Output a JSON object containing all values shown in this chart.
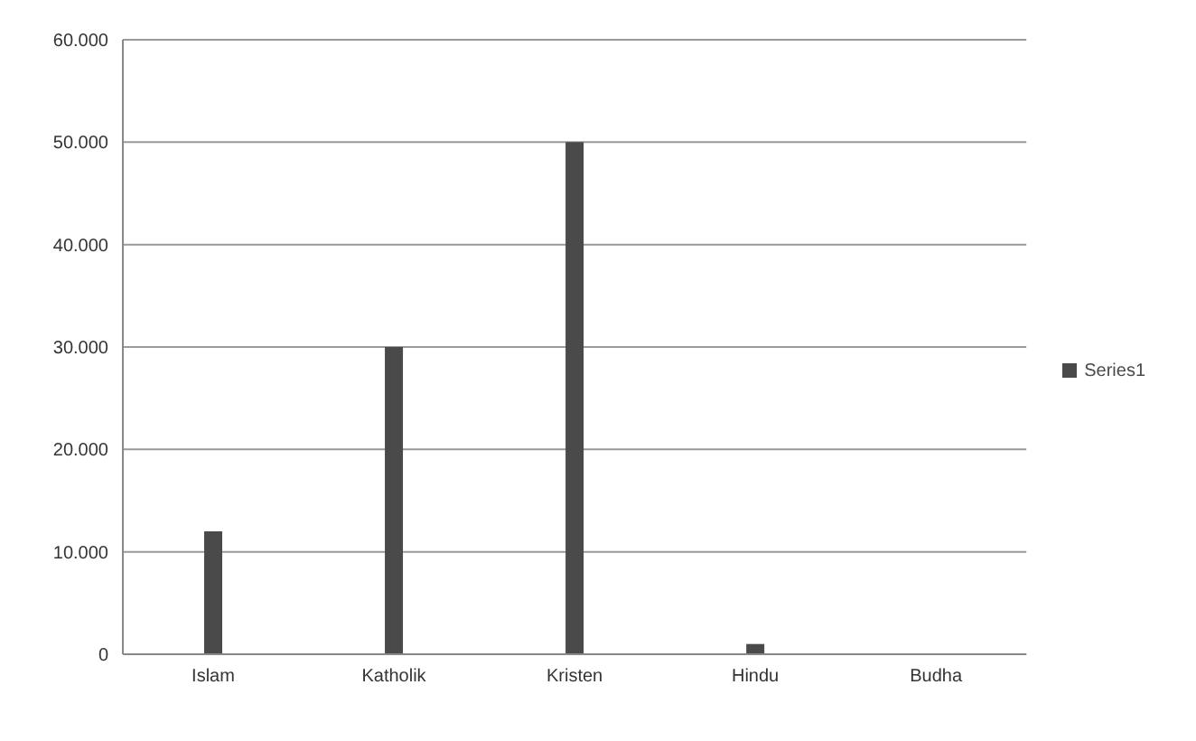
{
  "chart_data": {
    "type": "bar",
    "categories": [
      "Islam",
      "Katholik",
      "Kristen",
      "Hindu",
      "Budha"
    ],
    "series": [
      {
        "name": "Series1",
        "color": "#4a4a4a",
        "values": [
          12000,
          30000,
          50000,
          1000,
          0
        ]
      }
    ],
    "ylim": [
      0,
      60000
    ],
    "yticks": [
      0,
      {
        "value": 10000,
        "label": "10.000"
      },
      {
        "value": 20000,
        "label": "20.000"
      },
      {
        "value": 30000,
        "label": "30.000"
      },
      {
        "value": 40000,
        "label": "40.000"
      },
      {
        "value": 50000,
        "label": "50.000"
      },
      {
        "value": 60000,
        "label": "60.000"
      }
    ],
    "grid": "y",
    "legend": "right"
  }
}
